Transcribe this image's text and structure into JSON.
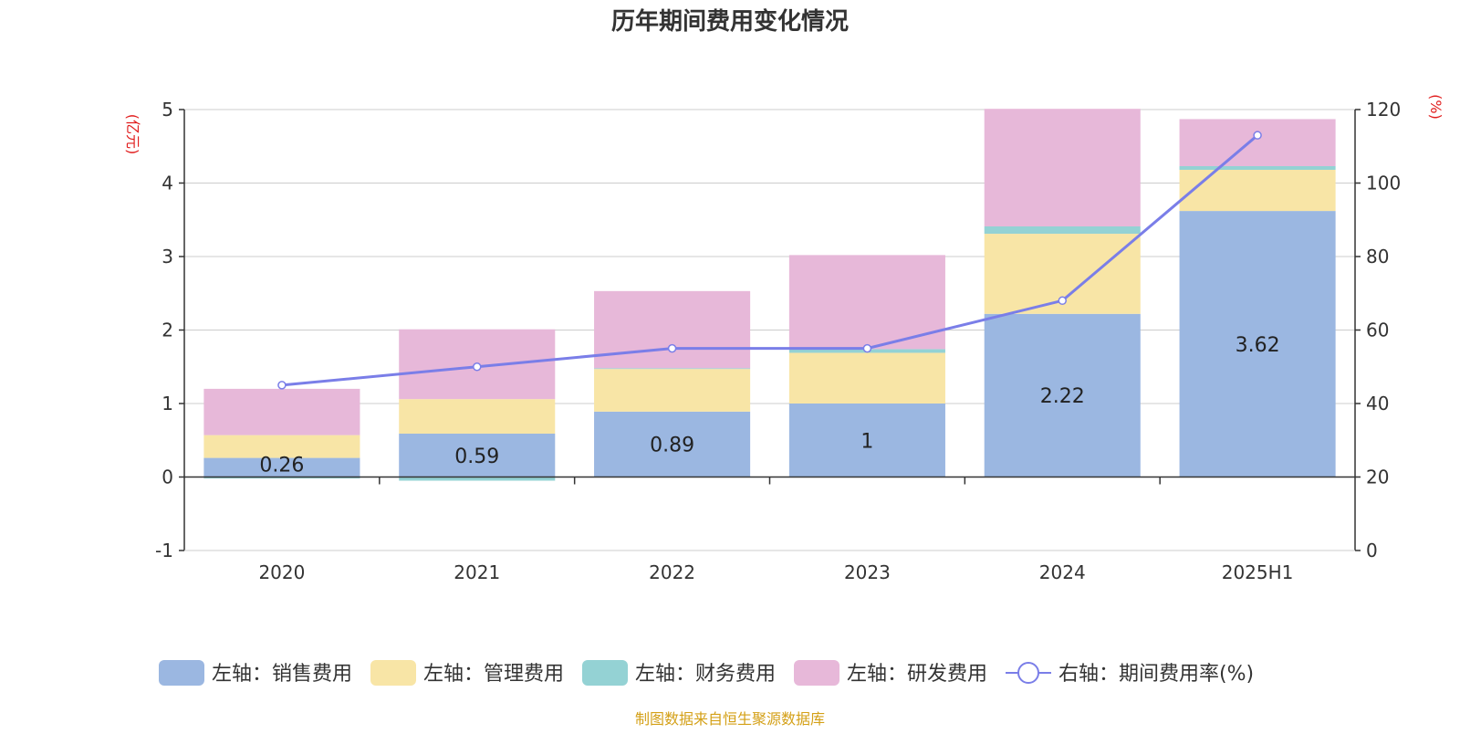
{
  "chart_data": {
    "type": "bar",
    "title": "历年期间费用变化情况",
    "categories": [
      "2020",
      "2021",
      "2022",
      "2023",
      "2024",
      "2025H1"
    ],
    "left_axis": {
      "unit": "(亿元)",
      "ylim": [
        -1,
        5
      ],
      "ticks": [
        -1,
        0,
        1,
        2,
        3,
        4,
        5
      ]
    },
    "right_axis": {
      "unit": "(%)",
      "ylim": [
        0,
        120
      ],
      "ticks": [
        0,
        20,
        40,
        60,
        80,
        100,
        120
      ]
    },
    "series": [
      {
        "name": "左轴：销售费用",
        "type": "bar",
        "axis": "left",
        "stack": true,
        "color": "#9bb7e1",
        "values": [
          0.26,
          0.59,
          0.89,
          1,
          2.22,
          3.62
        ],
        "labels": [
          "0.26",
          "0.59",
          "0.89",
          "1",
          "2.22",
          "3.62"
        ]
      },
      {
        "name": "左轴：管理费用",
        "type": "bar",
        "axis": "left",
        "stack": true,
        "color": "#f8e5a6",
        "values": [
          0.31,
          0.47,
          0.58,
          0.69,
          1.09,
          0.56
        ]
      },
      {
        "name": "左轴：财务费用",
        "type": "bar",
        "axis": "left",
        "stack": true,
        "color": "#94d2d4",
        "values": [
          -0.02,
          -0.05,
          0.01,
          0.05,
          0.1,
          0.05
        ]
      },
      {
        "name": "左轴：研发费用",
        "type": "bar",
        "axis": "left",
        "stack": true,
        "color": "#e7b8d9",
        "values": [
          0.63,
          0.95,
          1.05,
          1.28,
          1.6,
          0.64
        ]
      },
      {
        "name": "右轴：期间费用率(%)",
        "type": "line",
        "axis": "right",
        "color": "#7a7ee8",
        "values": [
          45,
          50,
          55,
          55,
          68,
          113
        ]
      }
    ],
    "grid": true,
    "legend_position": "bottom"
  },
  "source_note": "制图数据来自恒生聚源数据库",
  "colors": {
    "title": "#333333",
    "axis_unit": "#e11d1d",
    "source": "#d4a017",
    "axis_line": "#333333",
    "grid": "#cccccc"
  }
}
